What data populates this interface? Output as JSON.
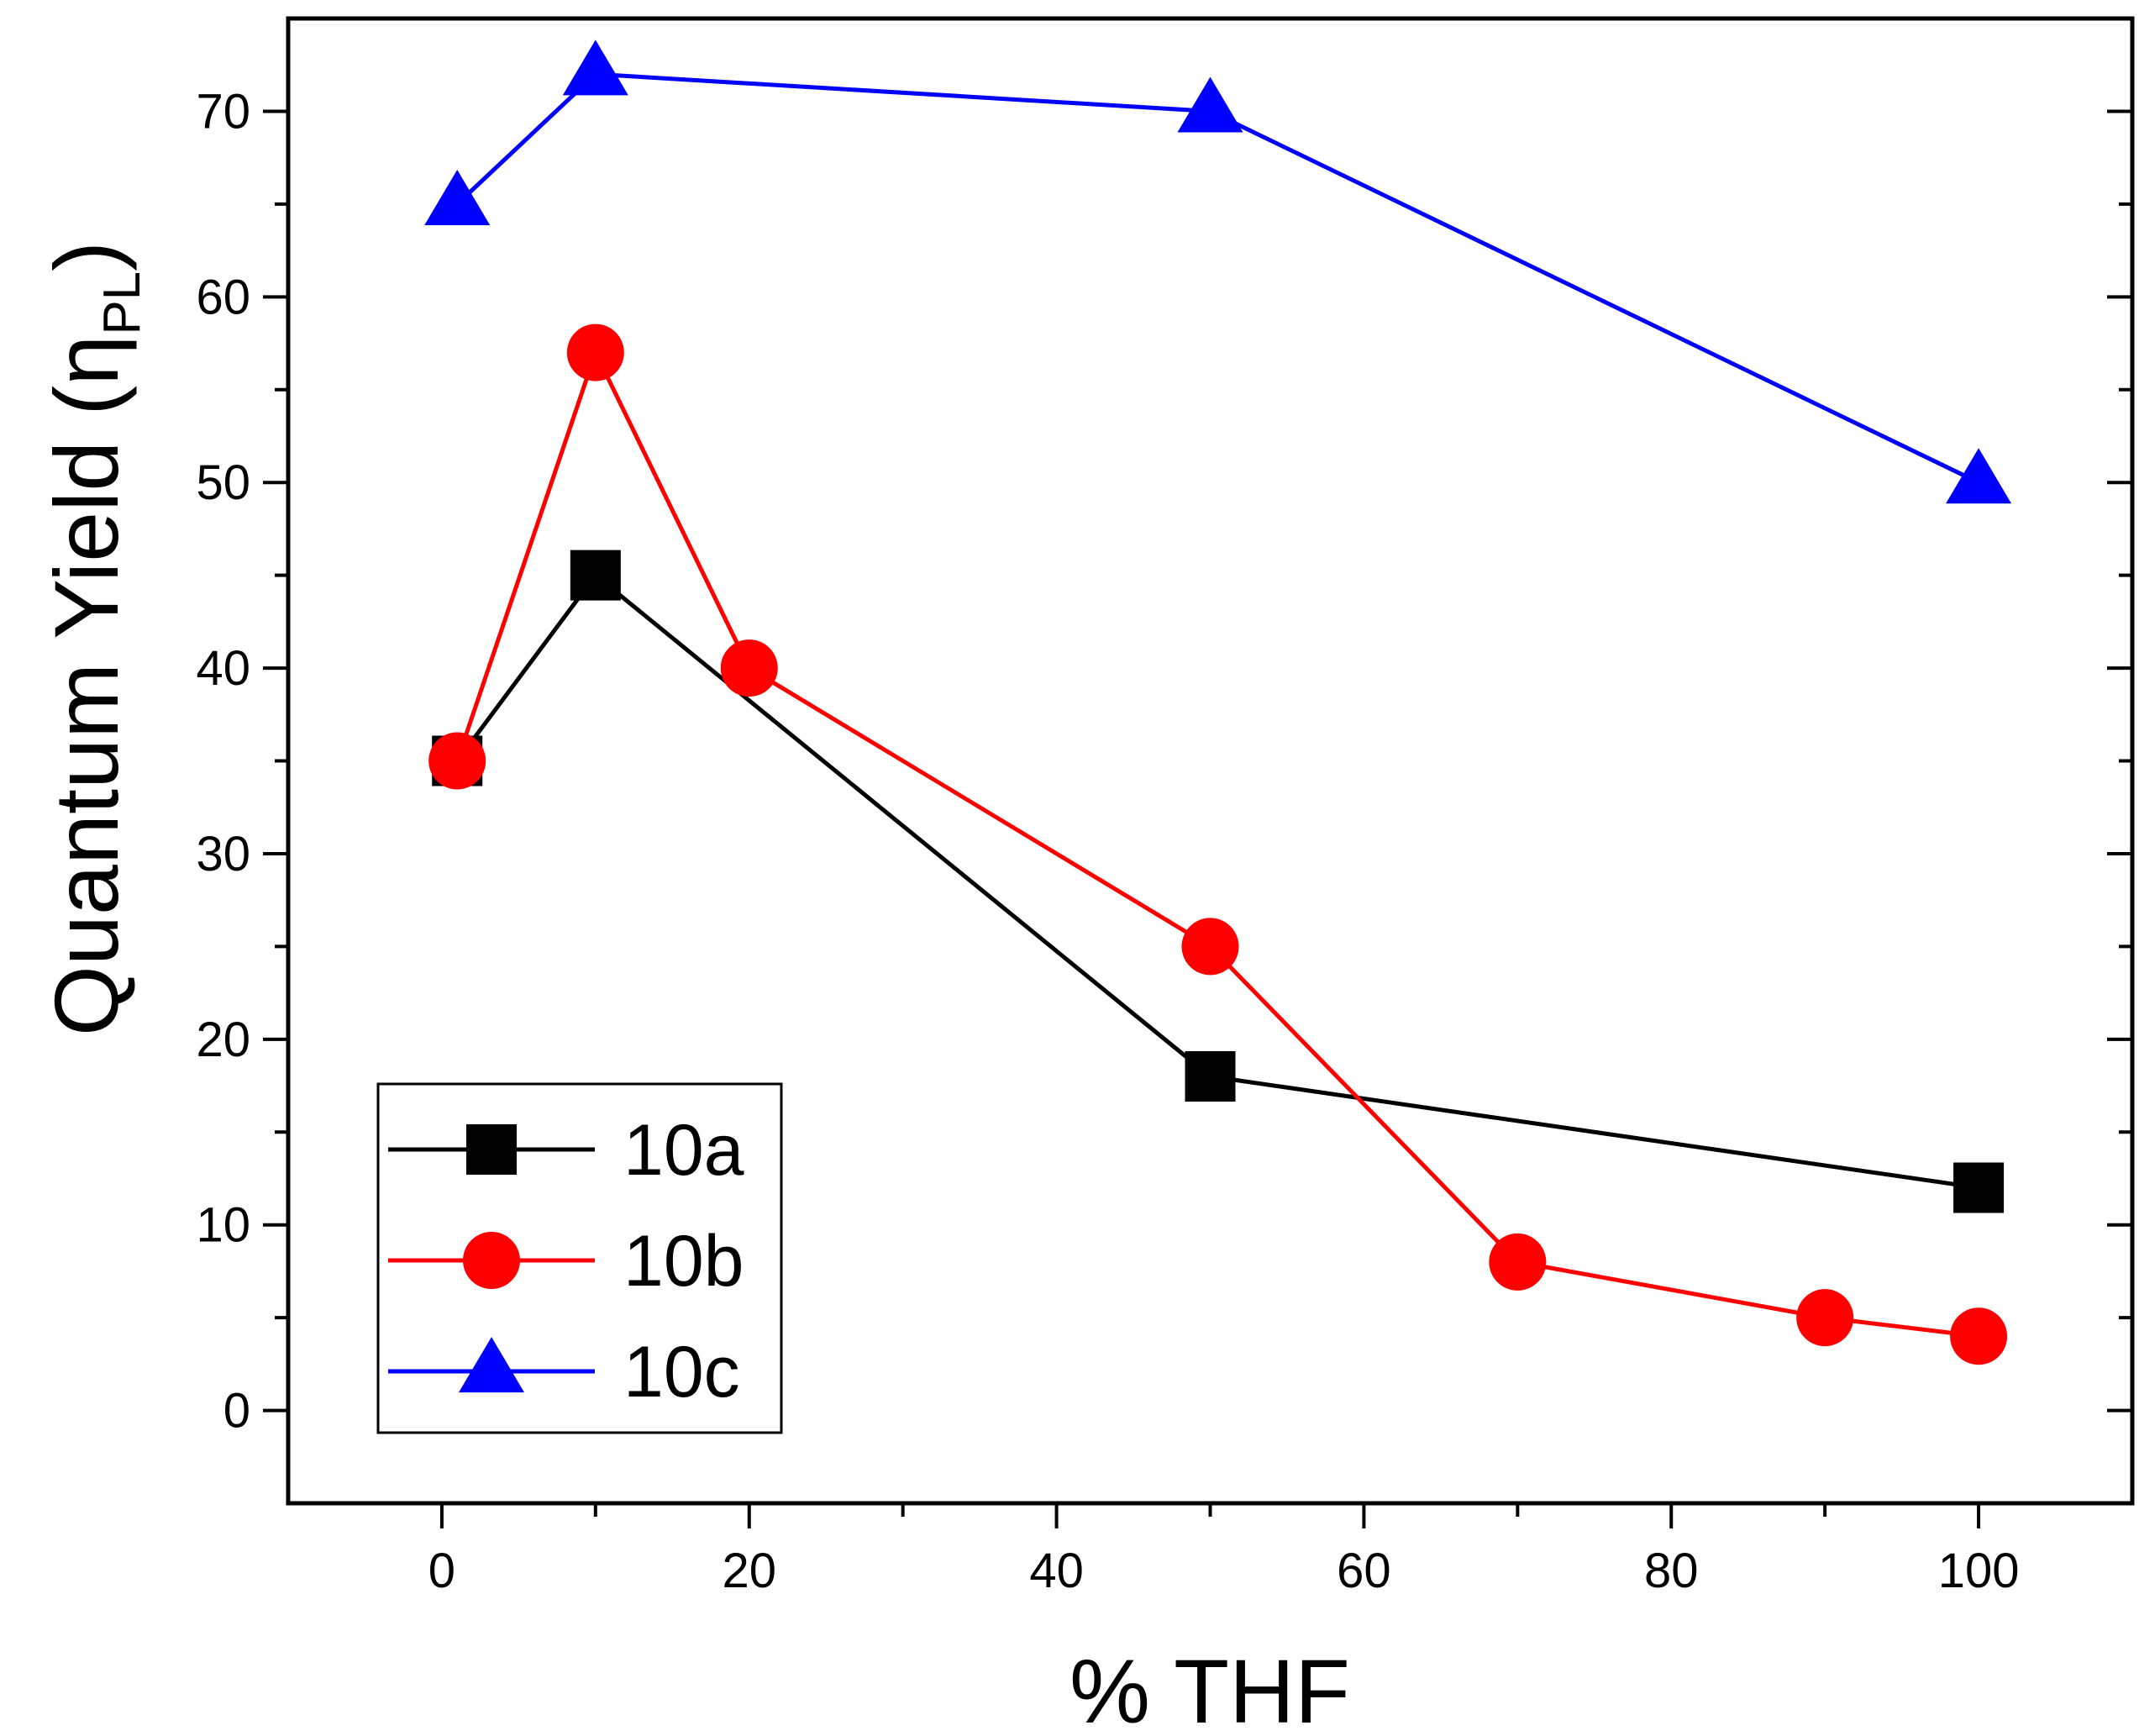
{
  "chart_data": {
    "type": "line",
    "xlabel": "% THF",
    "ylabel": {
      "main": "Quantum Yield (",
      "symbol": "η",
      "subscript": "PL",
      "close": ")"
    },
    "xlim": [
      -10,
      110
    ],
    "ylim": [
      -5,
      75
    ],
    "xticks": [
      0,
      20,
      40,
      60,
      80,
      100
    ],
    "yticks": [
      0,
      10,
      20,
      30,
      40,
      50,
      60,
      70
    ],
    "grid": false,
    "legend_position": "bottom-left",
    "series": [
      {
        "name": "10a",
        "color": "#000000",
        "marker": "square",
        "x": [
          1,
          10,
          50,
          100
        ],
        "y": [
          35,
          45,
          18,
          12
        ]
      },
      {
        "name": "10b",
        "color": "#ff0000",
        "marker": "circle",
        "x": [
          1,
          10,
          20,
          50,
          70,
          90,
          100
        ],
        "y": [
          35,
          57,
          40,
          25,
          8,
          5,
          4
        ]
      },
      {
        "name": "10c",
        "color": "#0000ff",
        "marker": "triangle",
        "x": [
          1,
          10,
          50,
          100
        ],
        "y": [
          65,
          72,
          70,
          50
        ]
      }
    ]
  }
}
